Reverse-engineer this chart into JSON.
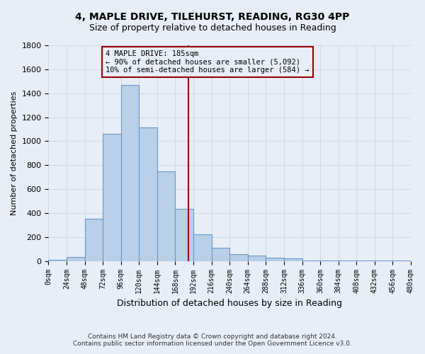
{
  "title": "4, MAPLE DRIVE, TILEHURST, READING, RG30 4PP",
  "subtitle": "Size of property relative to detached houses in Reading",
  "xlabel": "Distribution of detached houses by size in Reading",
  "ylabel": "Number of detached properties",
  "footer_line1": "Contains HM Land Registry data © Crown copyright and database right 2024.",
  "footer_line2": "Contains public sector information licensed under the Open Government Licence v3.0.",
  "bin_edges": [
    0,
    24,
    48,
    72,
    96,
    120,
    144,
    168,
    192,
    216,
    240,
    264,
    288,
    312,
    336,
    360,
    384,
    408,
    432,
    456,
    480
  ],
  "bar_values": [
    10,
    35,
    355,
    1060,
    1470,
    1115,
    750,
    435,
    220,
    110,
    55,
    45,
    30,
    20,
    5,
    5,
    5,
    5,
    2,
    2
  ],
  "bar_color": "#b8d0e8",
  "bar_edge_color": "#6699cc",
  "background_color": "#e8eef8",
  "grid_color": "#d0d8e8",
  "vline_x": 185,
  "vline_color": "#990000",
  "annotation_line1": "4 MAPLE DRIVE: 185sqm",
  "annotation_line2": "← 90% of detached houses are smaller (5,092)",
  "annotation_line3": "10% of semi-detached houses are larger (584) →",
  "annotation_box_color": "#990000",
  "ylim": [
    0,
    1800
  ],
  "yticks": [
    0,
    200,
    400,
    600,
    800,
    1000,
    1200,
    1400,
    1600,
    1800
  ],
  "tick_labels": [
    "0sqm",
    "24sqm",
    "48sqm",
    "72sqm",
    "96sqm",
    "120sqm",
    "144sqm",
    "168sqm",
    "192sqm",
    "216sqm",
    "240sqm",
    "264sqm",
    "288sqm",
    "312sqm",
    "336sqm",
    "360sqm",
    "384sqm",
    "408sqm",
    "432sqm",
    "456sqm",
    "480sqm"
  ],
  "title_fontsize": 10,
  "subtitle_fontsize": 9,
  "ylabel_fontsize": 8,
  "xlabel_fontsize": 9
}
